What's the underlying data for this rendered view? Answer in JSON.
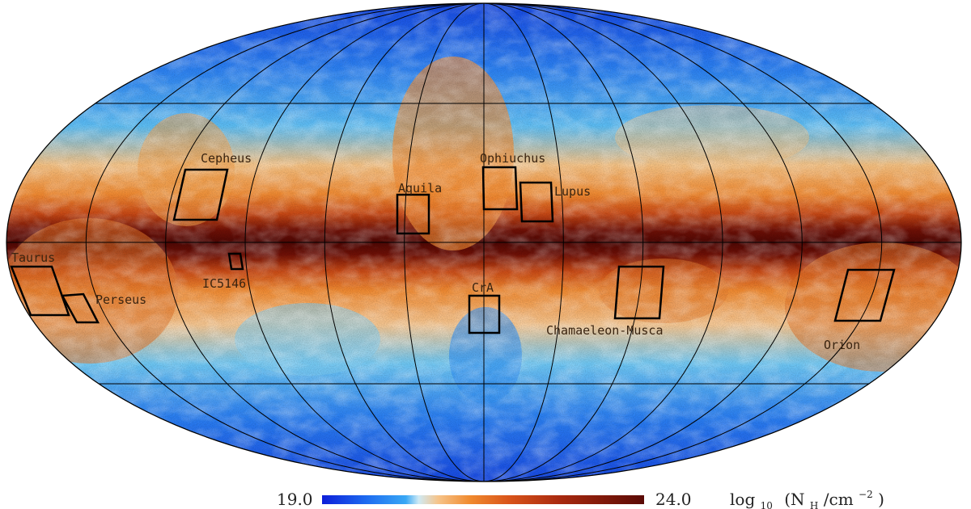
{
  "map": {
    "projection": "Mollweide all-sky",
    "quantity": "column density",
    "colormap": [
      "#0d1fd9",
      "#1e6cf0",
      "#39a8f5",
      "#cfeaf5",
      "#f6c48a",
      "#f08a2e",
      "#d9541a",
      "#a8290f",
      "#5a0a05"
    ],
    "regions": [
      {
        "name": "Cepheus"
      },
      {
        "name": "Ophiuchus"
      },
      {
        "name": "Aquila"
      },
      {
        "name": "Lupus"
      },
      {
        "name": "Taurus"
      },
      {
        "name": "IC5146"
      },
      {
        "name": "Perseus"
      },
      {
        "name": "CrA"
      },
      {
        "name": "Chamaeleon-Musca"
      },
      {
        "name": "Orion"
      }
    ]
  },
  "colorbar": {
    "min_label": "19.0",
    "max_label": "24.0",
    "unit_log": "log",
    "unit_log_sub": "10",
    "unit_body": "(N",
    "unit_body_sub": "H",
    "unit_tail": " /cm",
    "unit_tail_sup": "−2",
    "unit_close": ")"
  }
}
